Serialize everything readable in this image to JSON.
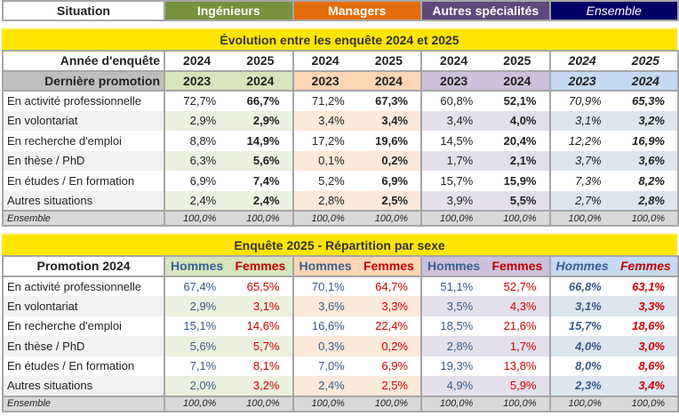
{
  "header": {
    "situation": "Situation",
    "groups": [
      "Ingénieurs",
      "Managers",
      "Autres spécialités",
      "Ensemble"
    ]
  },
  "colors": {
    "ingenieurs": "#76923c",
    "managers": "#e46c0a",
    "autres": "#5f497a",
    "ensemble": "#000066",
    "banner": "#ffe600"
  },
  "evolution": {
    "title": "Évolution entre les enquête 2024 et 2025",
    "year_label": "Année d'enquête",
    "years": [
      "2024",
      "2025"
    ],
    "promo_label": "Dernière promotion",
    "promos": [
      "2023",
      "2024"
    ],
    "rows": [
      {
        "label": "En activité professionnelle",
        "values": [
          "72,7%",
          "66,7%",
          "71,2%",
          "67,3%",
          "60,8%",
          "52,1%",
          "70,9%",
          "65,3%"
        ]
      },
      {
        "label": "En volontariat",
        "values": [
          "2,9%",
          "2,9%",
          "3,4%",
          "3,4%",
          "3,4%",
          "4,0%",
          "3,1%",
          "3,2%"
        ]
      },
      {
        "label": "En recherche d'emploi",
        "values": [
          "8,8%",
          "14,9%",
          "17,2%",
          "19,6%",
          "14,5%",
          "20,4%",
          "12,2%",
          "16,9%"
        ]
      },
      {
        "label": "En thèse / PhD",
        "values": [
          "6,3%",
          "5,6%",
          "0,1%",
          "0,2%",
          "1,7%",
          "2,1%",
          "3,7%",
          "3,6%"
        ]
      },
      {
        "label": "En études / En formation",
        "values": [
          "6,9%",
          "7,4%",
          "5,2%",
          "6,9%",
          "15,7%",
          "15,9%",
          "7,3%",
          "8,2%"
        ]
      },
      {
        "label": "Autres situations",
        "values": [
          "2,4%",
          "2,4%",
          "2,8%",
          "2,5%",
          "3,9%",
          "5,5%",
          "2,7%",
          "2,8%"
        ]
      }
    ],
    "total": {
      "label": "Ensemble",
      "values": [
        "100,0%",
        "100,0%",
        "100,0%",
        "100,0%",
        "100,0%",
        "100,0%",
        "100,0%",
        "100,0%"
      ]
    }
  },
  "sexe": {
    "title": "Enquête 2025 - Répartition par sexe",
    "promo_label": "Promotion 2024",
    "cols": [
      "Hommes",
      "Femmes"
    ],
    "rows": [
      {
        "label": "En activité professionnelle",
        "values": [
          "67,4%",
          "65,5%",
          "70,1%",
          "64,7%",
          "51,1%",
          "52,7%",
          "66,8%",
          "63,1%"
        ]
      },
      {
        "label": "En volontariat",
        "values": [
          "2,9%",
          "3,1%",
          "3,6%",
          "3,3%",
          "3,5%",
          "4,3%",
          "3,1%",
          "3,3%"
        ]
      },
      {
        "label": "En recherche d'emploi",
        "values": [
          "15,1%",
          "14,6%",
          "16,6%",
          "22,4%",
          "18,5%",
          "21,6%",
          "15,7%",
          "18,6%"
        ]
      },
      {
        "label": "En thèse / PhD",
        "values": [
          "5,6%",
          "5,7%",
          "0,3%",
          "0,2%",
          "2,8%",
          "1,7%",
          "4,0%",
          "3,0%"
        ]
      },
      {
        "label": "En études / En formation",
        "values": [
          "7,1%",
          "8,1%",
          "7,0%",
          "6,9%",
          "19,3%",
          "13,8%",
          "8,0%",
          "8,6%"
        ]
      },
      {
        "label": "Autres situations",
        "values": [
          "2,0%",
          "3,2%",
          "2,4%",
          "2,5%",
          "4,9%",
          "5,9%",
          "2,3%",
          "3,4%"
        ]
      }
    ],
    "total": {
      "label": "Ensemble",
      "values": [
        "100,0%",
        "100,0%",
        "100,0%",
        "100,0%",
        "100,0%",
        "100,0%",
        "100,0%",
        "100,0%"
      ]
    }
  }
}
